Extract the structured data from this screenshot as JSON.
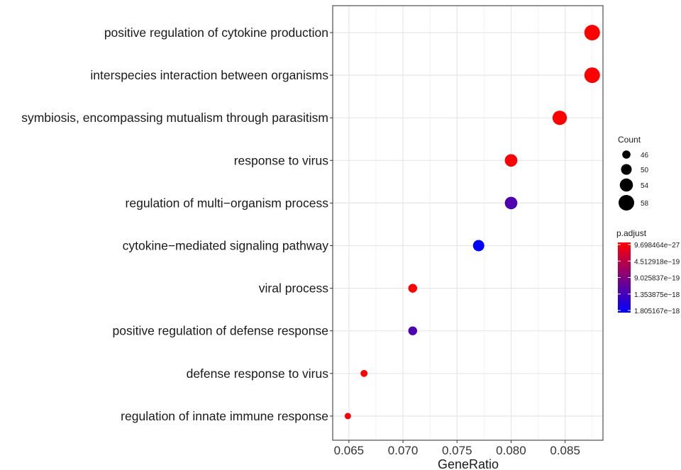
{
  "chart_data": {
    "type": "scatter",
    "xlabel": "GeneRatio",
    "xlim": [
      0.0635,
      0.0885
    ],
    "xticks": [
      {
        "value": 0.065,
        "label": "0.065"
      },
      {
        "value": 0.07,
        "label": "0.070"
      },
      {
        "value": 0.075,
        "label": "0.075"
      },
      {
        "value": 0.08,
        "label": "0.080"
      },
      {
        "value": 0.085,
        "label": "0.085"
      }
    ],
    "grid": true,
    "points": [
      {
        "term": "positive regulation of cytokine production",
        "gene_ratio": 0.0875,
        "count": 58,
        "p_adjust": 9.7e-27
      },
      {
        "term": "interspecies interaction between organisms",
        "gene_ratio": 0.0875,
        "count": 58,
        "p_adjust": 1e-25
      },
      {
        "term": "symbiosis, encompassing mutualism through parasitism",
        "gene_ratio": 0.0845,
        "count": 56,
        "p_adjust": 1e-25
      },
      {
        "term": "response to virus",
        "gene_ratio": 0.08,
        "count": 53,
        "p_adjust": 3e-20
      },
      {
        "term": "regulation of multi−organism process",
        "gene_ratio": 0.08,
        "count": 53,
        "p_adjust": 1.25e-18
      },
      {
        "term": "cytokine−mediated signaling pathway",
        "gene_ratio": 0.077,
        "count": 51,
        "p_adjust": 1.805e-18
      },
      {
        "term": "viral process",
        "gene_ratio": 0.0709,
        "count": 47,
        "p_adjust": 1e-21
      },
      {
        "term": "positive regulation of defense response",
        "gene_ratio": 0.0709,
        "count": 47,
        "p_adjust": 1.25e-18
      },
      {
        "term": "defense response to virus",
        "gene_ratio": 0.0664,
        "count": 44,
        "p_adjust": 1e-21
      },
      {
        "term": "regulation of innate immune response",
        "gene_ratio": 0.0649,
        "count": 43,
        "p_adjust": 8e-20
      }
    ],
    "size_legend": {
      "title": "Count",
      "entries": [
        {
          "value": 46,
          "label": "46"
        },
        {
          "value": 50,
          "label": "50"
        },
        {
          "value": 54,
          "label": "54"
        },
        {
          "value": 58,
          "label": "58"
        }
      ]
    },
    "color_legend": {
      "title": "p.adjust",
      "low_color": "#ff0000",
      "high_color": "#0000ff",
      "min": 9.698464e-27,
      "max": 1.805167e-18,
      "labels": [
        {
          "value": 9.698464e-27,
          "label": "9.698464e−27"
        },
        {
          "value": 4.512918e-19,
          "label": "4.512918e−19"
        },
        {
          "value": 9.025837e-19,
          "label": "9.025837e−19"
        },
        {
          "value": 1.353875e-18,
          "label": "1.353875e−18"
        },
        {
          "value": 1.805167e-18,
          "label": "1.805167e−18"
        }
      ]
    }
  }
}
